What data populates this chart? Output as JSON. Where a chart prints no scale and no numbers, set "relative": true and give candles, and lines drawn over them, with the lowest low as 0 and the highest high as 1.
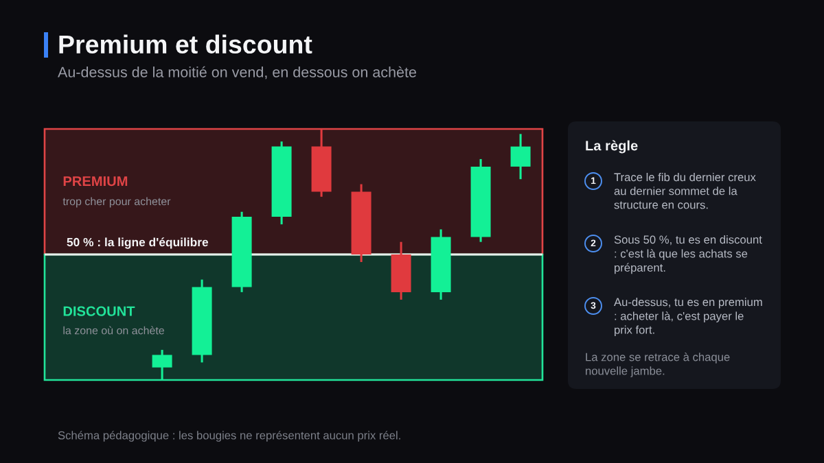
{
  "chart_data": [
    {
      "type": "candlestick",
      "title": "Premium et discount",
      "subtitle": "Au-dessus de la moitié on vend, en dessous on achète",
      "relative": true,
      "categories": [
        null,
        null,
        null,
        null,
        null,
        null,
        null,
        null,
        null,
        null
      ],
      "ohlc": [
        [
          0.05,
          0.12,
          0,
          0.1
        ],
        [
          0.1,
          0.4,
          0.07,
          0.37
        ],
        [
          0.37,
          0.67,
          0.35,
          0.65
        ],
        [
          0.65,
          0.95,
          0.62,
          0.93
        ],
        [
          0.93,
          1,
          0.73,
          0.75
        ],
        [
          0.75,
          0.78,
          0.47,
          0.5
        ],
        [
          0.5,
          0.55,
          0.32,
          0.35
        ],
        [
          0.35,
          0.6,
          0.32,
          0.57
        ],
        [
          0.57,
          0.88,
          0.55,
          0.85
        ],
        [
          0.85,
          0.98,
          0.8,
          0.93
        ]
      ],
      "colors": [
        "#13f096",
        "#13f096",
        "#13f096",
        "#13f096",
        "#e03a3e",
        "#e03a3e",
        "#e03a3e",
        "#13f096",
        "#13f096",
        "#13f096"
      ],
      "bands": [
        {
          "axis": "y",
          "from": 0.5,
          "to": 1,
          "label": "PREMIUM\ntrop cher pour acheter",
          "color": "#e04446"
        },
        {
          "axis": "y",
          "from": 0,
          "to": 0.5,
          "label": "DISCOUNT\nla zone où on achète",
          "color": "#22e49a"
        }
      ],
      "ref_lines": [
        {
          "axis": "y",
          "value": 0.5,
          "label": "50 % : la ligne d'équilibre",
          "color": "#e8efec",
          "line_style": "solid"
        }
      ],
      "annotations": [
        "Schéma pédagogique : les bougies ne représentent aucun prix réel."
      ]
    },
    {
      "type": "other",
      "title": "La règle",
      "categories": [
        "1",
        "2",
        "3"
      ],
      "annotations": [
        "Trace le fib du dernier creux au dernier sommet de la structure en cours.",
        "Sous 50 %, tu es en discount : c'est là que les achats se préparent.",
        "Au-dessus, tu es en premium : acheter là, c'est payer le prix fort.",
        "La zone se retrace à chaque nouvelle jambe."
      ]
    }
  ]
}
